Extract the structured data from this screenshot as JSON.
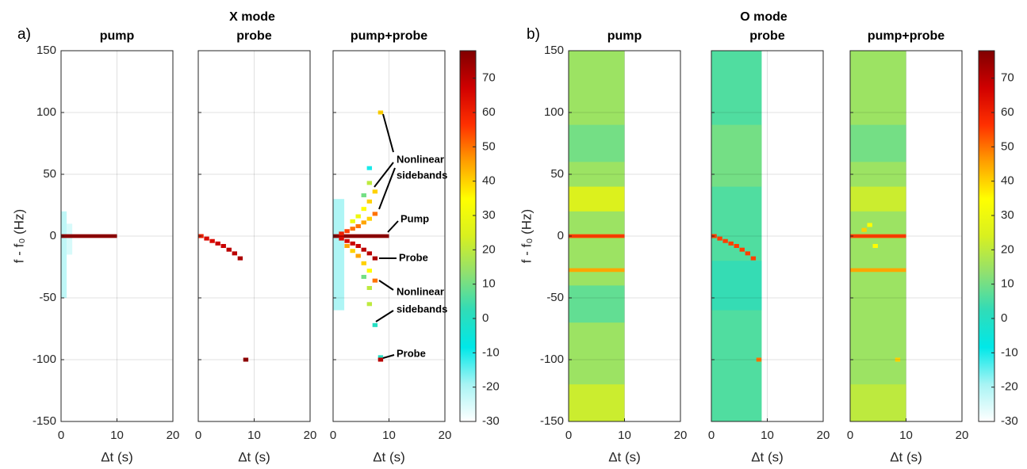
{
  "figure": {
    "labels": [
      "a)",
      "b)"
    ],
    "group_titles": [
      "X mode",
      "O mode"
    ]
  },
  "chart_data": [
    {
      "type": "heatmap",
      "title": "pump",
      "xlabel": "Δt (s)",
      "ylabel": "f - f₀ (Hz)",
      "xlim": [
        0,
        20
      ],
      "xticks": [
        0,
        10,
        20
      ],
      "ylim": [
        -150,
        150
      ],
      "yticks": [
        -150,
        -100,
        -50,
        0,
        50,
        100,
        150
      ],
      "grid": true,
      "regions": [
        [
          0,
          1,
          -50,
          20,
          -22
        ],
        [
          1,
          2,
          -15,
          10,
          -25
        ],
        [
          0,
          10,
          -1.5,
          1.5,
          76
        ]
      ],
      "cells": []
    },
    {
      "type": "heatmap",
      "title": "probe",
      "xlabel": "Δt (s)",
      "xlim": [
        0,
        20
      ],
      "xticks": [
        0,
        10,
        20
      ],
      "ylim": [
        -150,
        150
      ],
      "yticks": [
        -150,
        -100,
        -50,
        0,
        50,
        100,
        150
      ],
      "grid": true,
      "regions": [],
      "cells": [
        [
          0.5,
          0,
          60
        ],
        [
          1.5,
          -2,
          65
        ],
        [
          2.5,
          -4,
          65
        ],
        [
          3.5,
          -6,
          68
        ],
        [
          4.5,
          -8,
          68
        ],
        [
          5.5,
          -11,
          70
        ],
        [
          6.5,
          -14,
          70
        ],
        [
          7.5,
          -18,
          72
        ],
        [
          8.5,
          -100,
          76
        ]
      ]
    },
    {
      "type": "heatmap",
      "title": "pump+probe",
      "xlabel": "Δt (s)",
      "xlim": [
        0,
        20
      ],
      "xticks": [
        0,
        10,
        20
      ],
      "ylim": [
        -150,
        150
      ],
      "yticks": [
        -150,
        -100,
        -50,
        0,
        50,
        100,
        150
      ],
      "grid": true,
      "regions": [
        [
          0,
          2,
          -60,
          30,
          -20
        ],
        [
          0,
          10,
          -1.5,
          1.5,
          76
        ]
      ],
      "cells": [
        [
          1.5,
          2,
          60
        ],
        [
          2.5,
          4,
          55
        ],
        [
          3.5,
          6,
          50
        ],
        [
          4.5,
          8,
          50
        ],
        [
          5.5,
          11,
          45
        ],
        [
          6.5,
          14,
          40
        ],
        [
          7.5,
          18,
          50
        ],
        [
          3.5,
          12,
          30
        ],
        [
          4.5,
          16,
          30
        ],
        [
          5.5,
          22,
          35
        ],
        [
          6.5,
          28,
          40
        ],
        [
          7.5,
          36,
          40
        ],
        [
          5.5,
          33,
          10
        ],
        [
          6.5,
          43,
          20
        ],
        [
          6.5,
          55,
          -10
        ],
        [
          8.5,
          100,
          40
        ],
        [
          1.5,
          -2,
          65
        ],
        [
          2.5,
          -4,
          65
        ],
        [
          3.5,
          -6,
          68
        ],
        [
          4.5,
          -8,
          68
        ],
        [
          5.5,
          -11,
          70
        ],
        [
          6.5,
          -14,
          70
        ],
        [
          7.5,
          -18,
          72
        ],
        [
          2.5,
          -8,
          45
        ],
        [
          3.5,
          -12,
          40
        ],
        [
          4.5,
          -16,
          45
        ],
        [
          5.5,
          -22,
          40
        ],
        [
          6.5,
          -28,
          35
        ],
        [
          7.5,
          -36,
          50
        ],
        [
          5.5,
          -33,
          10
        ],
        [
          6.5,
          -42,
          20
        ],
        [
          6.5,
          -55,
          20
        ],
        [
          7.5,
          -72,
          0
        ],
        [
          8.5,
          -98,
          0
        ],
        [
          8.5,
          -100,
          70
        ]
      ]
    },
    {
      "type": "heatmap",
      "title": "pump",
      "xlabel": "Δt (s)",
      "ylabel": "f - f₀ (Hz)",
      "xlim": [
        0,
        20
      ],
      "xticks": [
        0,
        10,
        20
      ],
      "ylim": [
        -150,
        150
      ],
      "yticks": [
        -150,
        -100,
        -50,
        0,
        50,
        100,
        150
      ],
      "grid": true,
      "regions": [
        [
          0,
          10,
          -150,
          150,
          15
        ],
        [
          0,
          10,
          60,
          90,
          10
        ],
        [
          0,
          10,
          -70,
          -40,
          8
        ],
        [
          0,
          10,
          -150,
          -120,
          22
        ],
        [
          0,
          10,
          20,
          40,
          25
        ],
        [
          0,
          10,
          -1.5,
          1.5,
          55
        ],
        [
          0,
          10,
          -29,
          -26,
          45
        ]
      ],
      "cells": []
    },
    {
      "type": "heatmap",
      "title": "probe",
      "xlabel": "Δt (s)",
      "xlim": [
        0,
        20
      ],
      "xticks": [
        0,
        10,
        20
      ],
      "ylim": [
        -150,
        150
      ],
      "yticks": [
        -150,
        -100,
        -50,
        0,
        50,
        100,
        150
      ],
      "grid": true,
      "regions": [
        [
          0,
          9,
          -150,
          150,
          6
        ],
        [
          0,
          9,
          40,
          90,
          10
        ],
        [
          0,
          9,
          -60,
          -20,
          3
        ]
      ],
      "cells": [
        [
          0.5,
          0,
          55
        ],
        [
          1.5,
          -2,
          55
        ],
        [
          2.5,
          -4,
          55
        ],
        [
          3.5,
          -6,
          55
        ],
        [
          4.5,
          -8,
          55
        ],
        [
          5.5,
          -11,
          55
        ],
        [
          6.5,
          -14,
          55
        ],
        [
          7.5,
          -18,
          55
        ],
        [
          8.5,
          -100,
          50
        ]
      ]
    },
    {
      "type": "heatmap",
      "title": "pump+probe",
      "xlabel": "Δt (s)",
      "xlim": [
        0,
        20
      ],
      "xticks": [
        0,
        10,
        20
      ],
      "ylim": [
        -150,
        150
      ],
      "yticks": [
        -150,
        -100,
        -50,
        0,
        50,
        100,
        150
      ],
      "grid": true,
      "regions": [
        [
          0,
          10,
          -150,
          150,
          15
        ],
        [
          0,
          10,
          60,
          90,
          10
        ],
        [
          0,
          10,
          -150,
          -120,
          20
        ],
        [
          0,
          10,
          20,
          40,
          22
        ],
        [
          0,
          10,
          -1.5,
          1.5,
          55
        ],
        [
          0,
          10,
          -29,
          -26,
          45
        ]
      ],
      "cells": [
        [
          2.5,
          5,
          40
        ],
        [
          3.5,
          9,
          35
        ],
        [
          4.5,
          -8,
          35
        ],
        [
          8.5,
          -100,
          40
        ]
      ]
    }
  ],
  "colorbars": [
    {
      "clim": [
        -30,
        78
      ],
      "ticks": [
        -30,
        -20,
        -10,
        0,
        10,
        20,
        30,
        40,
        50,
        60,
        70
      ],
      "colors": [
        "#ffffff",
        "#a8f4f4",
        "#00e8e8",
        "#30dcb8",
        "#90e070",
        "#d8f020",
        "#ffff00",
        "#ffa000",
        "#ff3000",
        "#d00000",
        "#800000"
      ]
    },
    {
      "clim": [
        -30,
        78
      ],
      "ticks": [
        -30,
        -20,
        -10,
        0,
        10,
        20,
        30,
        40,
        50,
        60,
        70
      ],
      "colors": [
        "#ffffff",
        "#a8f4f4",
        "#00e8e8",
        "#30dcb8",
        "#90e070",
        "#d8f020",
        "#ffff00",
        "#ffa000",
        "#ff3000",
        "#d00000",
        "#800000"
      ]
    }
  ],
  "annotations": [
    [
      "Nonlinear",
      "sidebands"
    ],
    [
      "Pump"
    ],
    [
      "Probe"
    ],
    [
      "Nonlinear",
      "sidebands"
    ],
    [
      "Probe"
    ]
  ]
}
